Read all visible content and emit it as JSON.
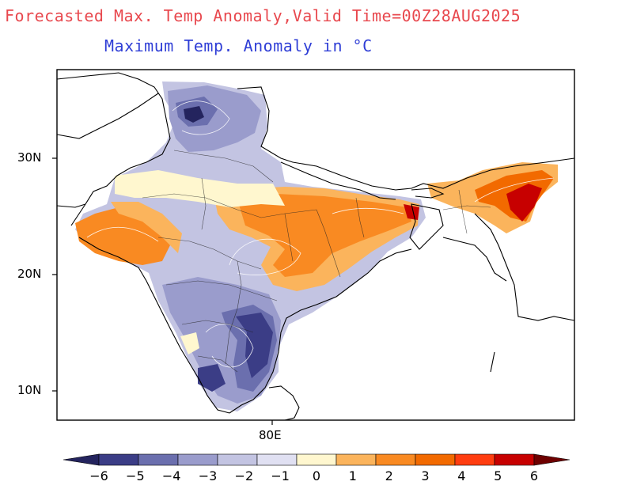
{
  "title": "Forecasted Max. Temp Anomaly,Valid Time=00Z28AUG2025",
  "subtitle": "Maximum Temp. Anomaly in °C",
  "axes": {
    "y_ticks": [
      "30N",
      "20N",
      "10N"
    ],
    "x_ticks": [
      "80E"
    ]
  },
  "colorbar": {
    "labels": [
      "−6",
      "−5",
      "−4",
      "−3",
      "−2",
      "−1",
      "0",
      "1",
      "2",
      "3",
      "4",
      "5",
      "6"
    ],
    "colors": [
      "#24245e",
      "#3b3d86",
      "#6b6fae",
      "#9a9ccc",
      "#c3c4e2",
      "#e0e0f2",
      "#fff7cf",
      "#fbb45c",
      "#f98a22",
      "#f26a00",
      "#ff3d10",
      "#c70000",
      "#6e0000"
    ]
  },
  "map": {
    "region": "India and surroundings",
    "land_fill": "#ffffff",
    "border_color": "#000000"
  }
}
